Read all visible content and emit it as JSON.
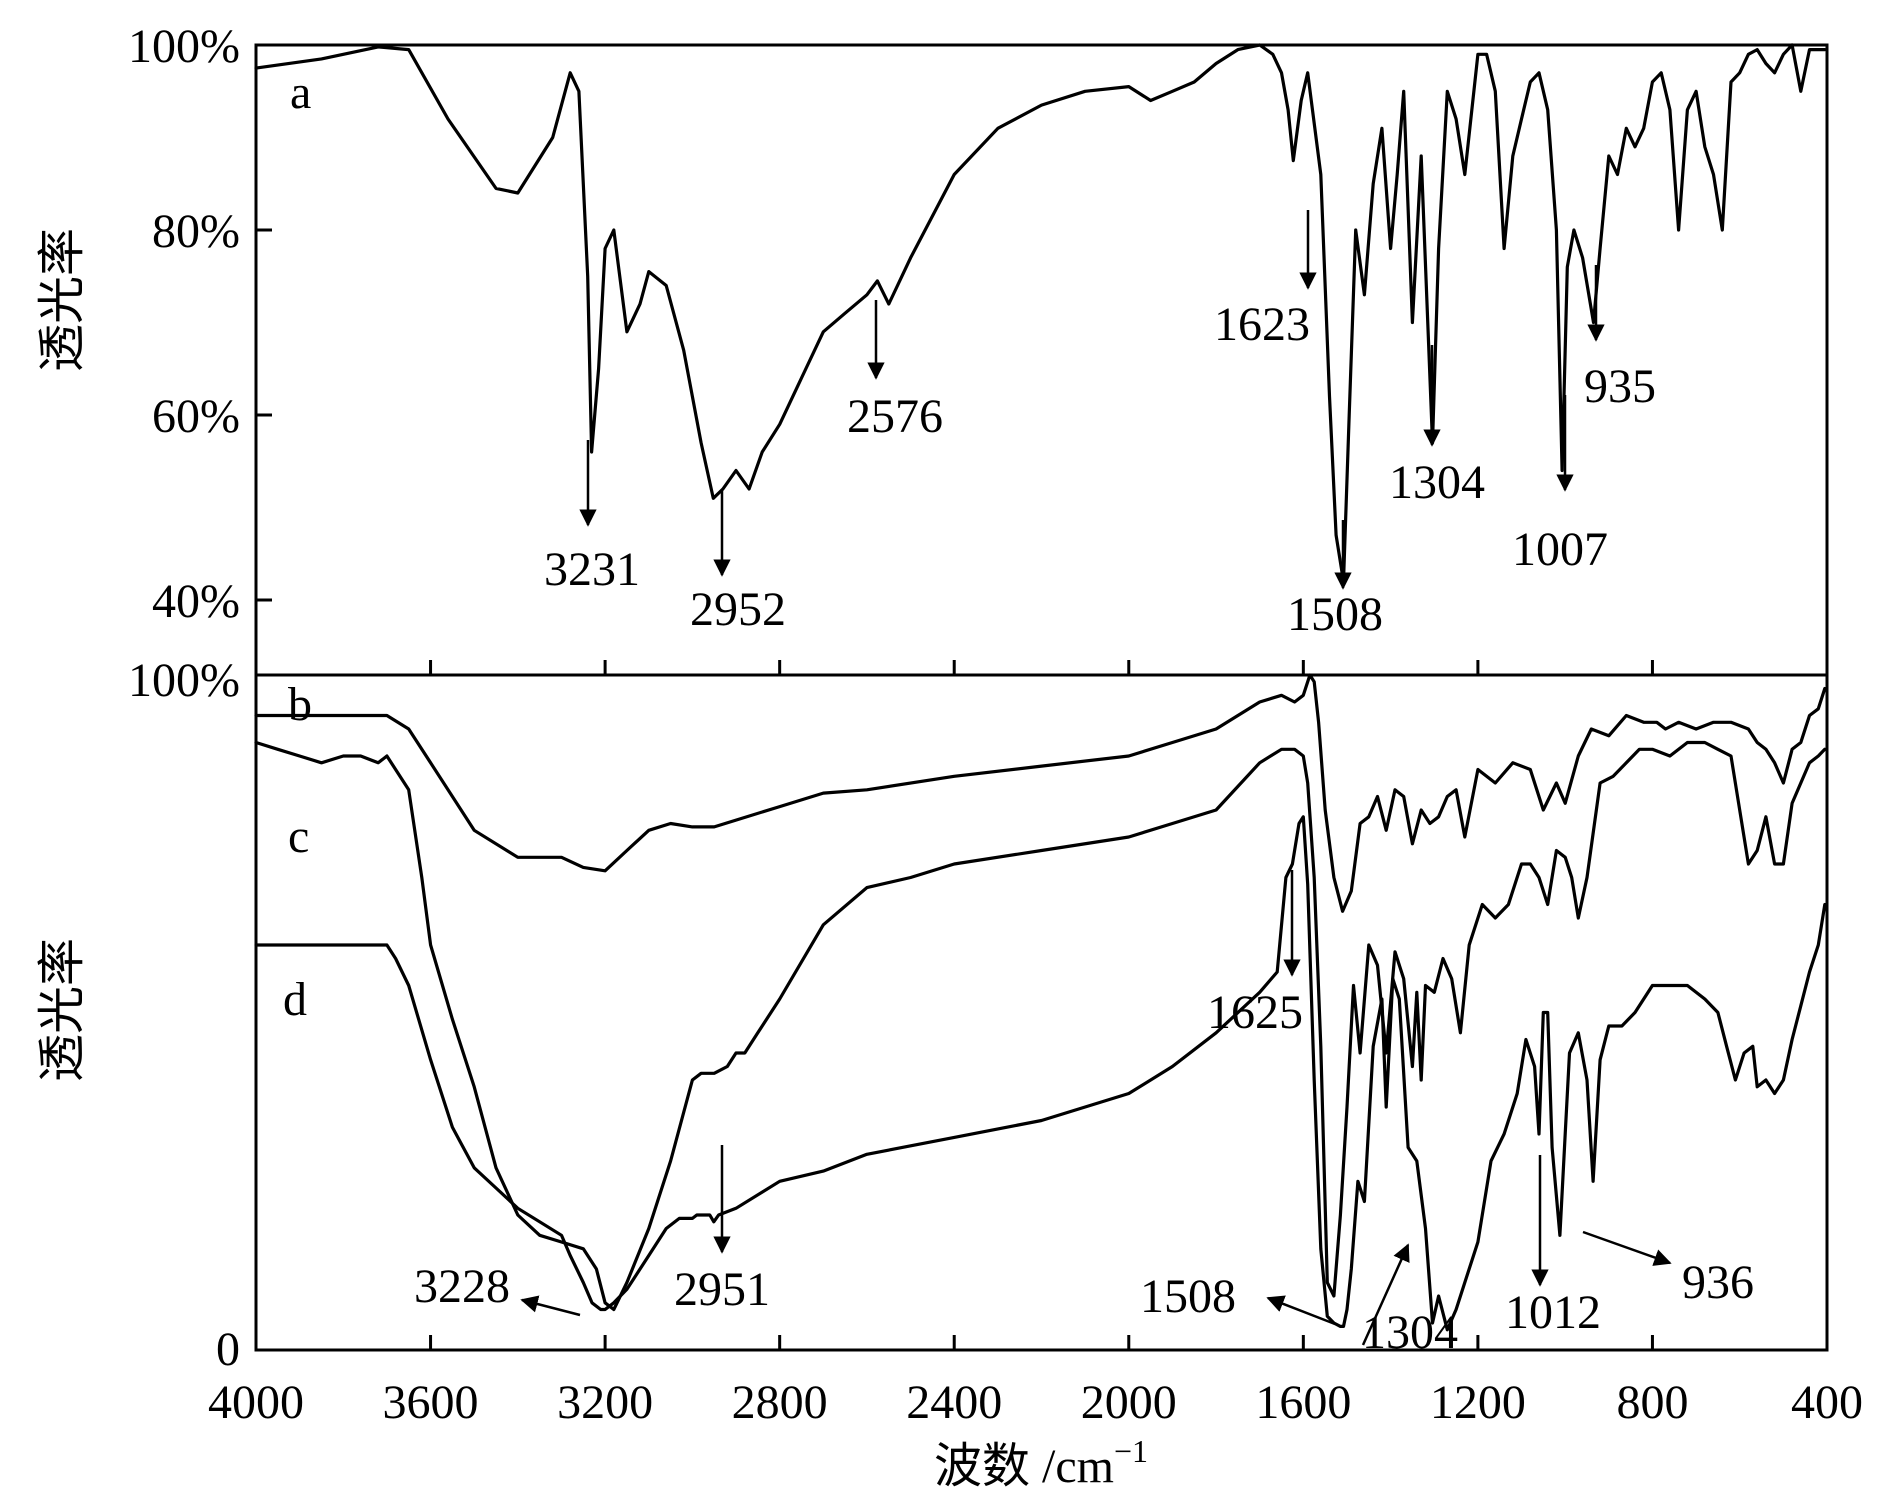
{
  "chart_data": [
    {
      "type": "line",
      "panel": "top",
      "xlabel": "波数 /cm⁻¹",
      "ylabel": "透光率",
      "xlim": [
        4000,
        400
      ],
      "x_reversed": true,
      "ylim": [
        33,
        100
      ],
      "y_ticks": [
        100,
        80,
        60,
        40
      ],
      "y_tick_labels": [
        "100%",
        "80%",
        "60%",
        "40%"
      ],
      "x_ticks": [
        4000,
        3600,
        3200,
        2800,
        2400,
        2000,
        1600,
        1200,
        800,
        400
      ],
      "grid": false,
      "series": [
        {
          "name": "a",
          "x": [
            4000,
            3850,
            3720,
            3650,
            3560,
            3450,
            3400,
            3320,
            3280,
            3260,
            3240,
            3231,
            3215,
            3200,
            3180,
            3150,
            3120,
            3100,
            3060,
            3020,
            2980,
            2952,
            2930,
            2900,
            2870,
            2840,
            2800,
            2750,
            2700,
            2650,
            2600,
            2576,
            2550,
            2500,
            2400,
            2300,
            2200,
            2100,
            2000,
            1950,
            1900,
            1850,
            1800,
            1750,
            1700,
            1670,
            1650,
            1635,
            1623,
            1605,
            1590,
            1560,
            1540,
            1525,
            1508,
            1495,
            1480,
            1460,
            1440,
            1420,
            1400,
            1385,
            1370,
            1350,
            1330,
            1304,
            1290,
            1270,
            1250,
            1230,
            1200,
            1180,
            1160,
            1140,
            1120,
            1100,
            1080,
            1060,
            1040,
            1020,
            1007,
            995,
            980,
            960,
            935,
            920,
            900,
            880,
            860,
            840,
            820,
            800,
            780,
            760,
            740,
            720,
            700,
            680,
            660,
            640,
            620,
            600,
            580,
            560,
            540,
            520,
            500,
            480,
            460,
            440,
            420,
            405
          ],
          "y": [
            97.5,
            98.5,
            99.8,
            99.5,
            92,
            84.5,
            84,
            90,
            97,
            95,
            75,
            56,
            65,
            78,
            80,
            69,
            72,
            75.5,
            74,
            67,
            57,
            51,
            52,
            54,
            52,
            56,
            59,
            64,
            69,
            71,
            73,
            74.5,
            72,
            77,
            86,
            91,
            93.5,
            95,
            95.5,
            94,
            95,
            96,
            98,
            99.5,
            100,
            99,
            97,
            93,
            87.5,
            94,
            97,
            86,
            62,
            47,
            42,
            60,
            80,
            73,
            85,
            91,
            78,
            86,
            95,
            70,
            88,
            57,
            78,
            95,
            92,
            86,
            99,
            99,
            95,
            78,
            88,
            92,
            96,
            97,
            93,
            80,
            54,
            76,
            80,
            77,
            70,
            78,
            88,
            86,
            91,
            89,
            91,
            96,
            97,
            93,
            80,
            93,
            95,
            89,
            86,
            80,
            96,
            97,
            99,
            99.5,
            98,
            97,
            99,
            100,
            95,
            99.5,
            99.5,
            99.5
          ],
          "peak_labels": [
            {
              "x": 3231,
              "label": "3231"
            },
            {
              "x": 2952,
              "label": "2952"
            },
            {
              "x": 2576,
              "label": "2576"
            },
            {
              "x": 1623,
              "label": "1623"
            },
            {
              "x": 1508,
              "label": "1508"
            },
            {
              "x": 1304,
              "label": "1304"
            },
            {
              "x": 1007,
              "label": "1007"
            },
            {
              "x": 935,
              "label": "935"
            }
          ]
        }
      ]
    },
    {
      "type": "line",
      "panel": "bottom",
      "xlabel": "波数 /cm⁻¹",
      "ylabel": "透光率",
      "xlim": [
        4000,
        400
      ],
      "x_reversed": true,
      "ylim": [
        0,
        100
      ],
      "y_ticks": [
        100,
        0
      ],
      "y_tick_labels": [
        "100%",
        "0"
      ],
      "x_ticks": [
        4000,
        3600,
        3200,
        2800,
        2400,
        2000,
        1600,
        1200,
        800,
        400
      ],
      "x_tick_labels": [
        "4000",
        "3600",
        "3200",
        "2800",
        "2400",
        "2000",
        "1600",
        "1200",
        "800",
        "400"
      ],
      "grid": false,
      "series": [
        {
          "name": "b",
          "x": [
            4000,
            3800,
            3700,
            3650,
            3600,
            3500,
            3400,
            3300,
            3250,
            3200,
            3150,
            3100,
            3050,
            3000,
            2950,
            2900,
            2800,
            2700,
            2600,
            2400,
            2200,
            2000,
            1900,
            1800,
            1700,
            1650,
            1620,
            1600,
            1585,
            1575,
            1565,
            1550,
            1530,
            1510,
            1490,
            1470,
            1450,
            1430,
            1410,
            1390,
            1370,
            1350,
            1330,
            1310,
            1290,
            1270,
            1250,
            1230,
            1200,
            1160,
            1120,
            1080,
            1050,
            1020,
            1000,
            970,
            940,
            900,
            860,
            820,
            790,
            770,
            740,
            700,
            660,
            620,
            580,
            560,
            540,
            520,
            500,
            480,
            460,
            440,
            420,
            405
          ],
          "y": [
            94,
            94,
            94,
            92,
            87,
            77,
            73,
            73,
            71.5,
            71,
            74,
            77,
            78,
            77.5,
            77.5,
            78.5,
            80.5,
            82.5,
            83,
            85,
            86.5,
            88,
            90,
            92,
            96,
            97,
            96,
            97,
            100,
            99,
            93,
            80,
            70,
            65,
            68,
            78,
            79,
            82,
            77,
            83,
            82,
            75,
            80,
            78,
            79,
            82,
            83,
            76,
            86,
            84,
            87,
            86,
            80,
            84,
            81,
            88,
            92,
            91,
            94,
            93,
            93,
            92,
            93,
            92,
            93,
            93,
            92,
            90,
            89,
            87,
            84,
            89,
            90,
            94,
            95,
            98
          ]
        },
        {
          "name": "c",
          "x": [
            4000,
            3950,
            3900,
            3850,
            3800,
            3760,
            3720,
            3700,
            3680,
            3650,
            3620,
            3600,
            3550,
            3500,
            3450,
            3400,
            3350,
            3300,
            3250,
            3220,
            3200,
            3180,
            3150,
            3100,
            3050,
            3000,
            2980,
            2950,
            2920,
            2900,
            2880,
            2850,
            2800,
            2700,
            2600,
            2500,
            2400,
            2200,
            2000,
            1900,
            1800,
            1700,
            1650,
            1620,
            1600,
            1590,
            1575,
            1560,
            1545,
            1530,
            1515,
            1500,
            1485,
            1470,
            1450,
            1430,
            1410,
            1390,
            1370,
            1350,
            1340,
            1330,
            1320,
            1300,
            1280,
            1260,
            1240,
            1220,
            1190,
            1160,
            1130,
            1100,
            1080,
            1060,
            1040,
            1020,
            1000,
            985,
            970,
            950,
            920,
            890,
            860,
            830,
            800,
            760,
            720,
            680,
            650,
            620,
            600,
            580,
            560,
            540,
            520,
            500,
            480,
            460,
            440,
            420,
            405
          ],
          "y": [
            90,
            89,
            88,
            87,
            88,
            88,
            87,
            88,
            86,
            83,
            70,
            60,
            49,
            39,
            27,
            20,
            17,
            16,
            15,
            12,
            7,
            6,
            10,
            18,
            28,
            40,
            41,
            41,
            42,
            44,
            44,
            47,
            52,
            63,
            68.5,
            70,
            72,
            74,
            76,
            78,
            80,
            87,
            89,
            89,
            88,
            84,
            70,
            45,
            10,
            8,
            20,
            36,
            54,
            44,
            60,
            57,
            44,
            59,
            55,
            42,
            53,
            40,
            54,
            53,
            58,
            55,
            47,
            60,
            66,
            64,
            66,
            72,
            72,
            70,
            66,
            74,
            73,
            70,
            64,
            70,
            84,
            85,
            87,
            89,
            89,
            88,
            90,
            90,
            89,
            88,
            80,
            72,
            74,
            79,
            72,
            72,
            81,
            84,
            87,
            88,
            89
          ]
        },
        {
          "name": "d",
          "x": [
            4000,
            3900,
            3800,
            3750,
            3700,
            3680,
            3650,
            3600,
            3550,
            3500,
            3450,
            3400,
            3350,
            3300,
            3280,
            3250,
            3230,
            3210,
            3200,
            3180,
            3150,
            3100,
            3060,
            3030,
            3000,
            2990,
            2960,
            2951,
            2940,
            2920,
            2900,
            2800,
            2700,
            2600,
            2400,
            2200,
            2000,
            1900,
            1800,
            1700,
            1660,
            1640,
            1625,
            1610,
            1600,
            1590,
            1575,
            1560,
            1545,
            1530,
            1515,
            1508,
            1500,
            1490,
            1475,
            1460,
            1440,
            1420,
            1410,
            1395,
            1380,
            1360,
            1340,
            1320,
            1304,
            1290,
            1270,
            1250,
            1230,
            1200,
            1170,
            1140,
            1110,
            1090,
            1070,
            1060,
            1050,
            1040,
            1030,
            1012,
            1000,
            990,
            970,
            950,
            936,
            920,
            900,
            870,
            840,
            800,
            760,
            720,
            680,
            650,
            630,
            610,
            590,
            570,
            560,
            540,
            520,
            500,
            480,
            460,
            440,
            420,
            405
          ],
          "y": [
            60,
            60,
            60,
            60,
            60,
            58,
            54,
            43,
            33,
            27,
            24,
            21,
            19,
            17,
            14,
            10,
            7,
            6,
            6,
            7,
            9,
            14,
            18,
            19.5,
            19.5,
            20,
            20,
            19,
            20,
            20.5,
            21,
            25,
            26.5,
            29,
            31.5,
            34,
            38,
            42,
            47,
            53,
            56,
            70,
            72,
            78,
            79,
            69,
            40,
            15,
            5,
            4,
            3.5,
            3.5,
            6,
            12,
            25,
            22,
            45,
            52,
            36,
            55,
            52,
            30,
            28,
            18,
            4,
            8,
            3,
            6,
            10,
            16,
            28,
            32,
            38,
            46,
            42,
            32,
            50,
            50,
            30,
            17,
            32,
            44,
            47,
            40,
            25,
            43,
            48,
            48,
            50,
            54,
            54,
            54,
            52,
            50,
            45,
            40,
            44,
            45,
            39,
            40,
            38,
            40,
            46,
            51,
            56,
            60,
            66
          ],
          "peak_labels": [
            {
              "x": 3228,
              "label": "3228"
            },
            {
              "x": 2951,
              "label": "2951"
            },
            {
              "x": 1625,
              "label": "1625"
            },
            {
              "x": 1508,
              "label": "1508"
            },
            {
              "x": 1304,
              "label": "1304"
            },
            {
              "x": 1012,
              "label": "1012"
            },
            {
              "x": 936,
              "label": "936"
            }
          ]
        }
      ]
    }
  ],
  "labels": {
    "top_ylabel": "透光率",
    "bottom_ylabel": "透光率",
    "xlabel": "波数 /cm",
    "xlabel_sup": "−1",
    "panel_a": "a",
    "panel_b": "b",
    "panel_c": "c",
    "panel_d": "d",
    "ytick_top_100": "100%",
    "ytick_top_80": "80%",
    "ytick_top_60": "60%",
    "ytick_top_40": "40%",
    "ytick_bottom_100": "100%",
    "ytick_bottom_0": "0",
    "xticks": [
      "4000",
      "3600",
      "3200",
      "2800",
      "2400",
      "2000",
      "1600",
      "1200",
      "800",
      "400"
    ],
    "peaks_top": {
      "p3231": "3231",
      "p2952": "2952",
      "p2576": "2576",
      "p1623": "1623",
      "p1508": "1508",
      "p1304": "1304",
      "p1007": "1007",
      "p935": "935"
    },
    "peaks_bottom": {
      "p3228": "3228",
      "p2951": "2951",
      "p1625": "1625",
      "p1508": "1508",
      "p1304": "1304",
      "p1012": "1012",
      "p936": "936"
    }
  }
}
